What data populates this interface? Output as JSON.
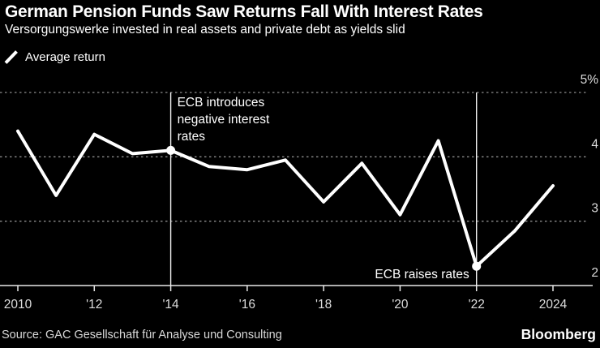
{
  "header": {
    "title": "German Pension Funds Saw Returns Fall With Interest Rates",
    "subtitle": "Versorgungswerke invested in real assets and private debt as yields slid"
  },
  "legend": {
    "label": "Average return"
  },
  "footer": {
    "source": "Source: GAC Gesellschaft für Analyse und Consulting",
    "brand": "Bloomberg"
  },
  "colors": {
    "background": "#000000",
    "line": "#ffffff",
    "grid": "#8c8c8c",
    "axis": "#e8e8e8",
    "tick_label": "#dcdcdc",
    "annotation_text": "#ffffff",
    "annotation_line": "#f2f2f2"
  },
  "chart_data": {
    "type": "line",
    "title": "German Pension Funds Saw Returns Fall With Interest Rates",
    "series_name": "Average return",
    "x": [
      2010,
      2011,
      2012,
      2013,
      2014,
      2015,
      2016,
      2017,
      2018,
      2019,
      2020,
      2021,
      2022,
      2023,
      2024
    ],
    "values": [
      4.4,
      3.4,
      4.35,
      4.05,
      4.1,
      3.85,
      3.8,
      3.95,
      3.3,
      3.9,
      3.1,
      4.25,
      2.3,
      2.85,
      3.55
    ],
    "unit": "%",
    "ylim": [
      2,
      5
    ],
    "yticks": [
      5,
      4,
      3,
      2
    ],
    "ytick_labels": [
      "5%",
      "4",
      "3",
      "2"
    ],
    "xticks": [
      2010,
      2012,
      2014,
      2016,
      2018,
      2020,
      2022,
      2024
    ],
    "xtick_labels": [
      "2010",
      "'12",
      "'14",
      "'16",
      "'18",
      "'20",
      "'22",
      "2024"
    ],
    "grid": "horizontal-dotted",
    "legend_position": "top-left",
    "annotations": [
      {
        "year": 2014,
        "value": 4.1,
        "text": "ECB introduces negative interest rates",
        "lines": [
          "ECB introduces",
          "negative interest",
          "rates"
        ],
        "placement": "top"
      },
      {
        "year": 2022,
        "value": 2.3,
        "text": "ECB raises rates",
        "lines": [
          "ECB raises rates"
        ],
        "placement": "bottom"
      }
    ]
  }
}
